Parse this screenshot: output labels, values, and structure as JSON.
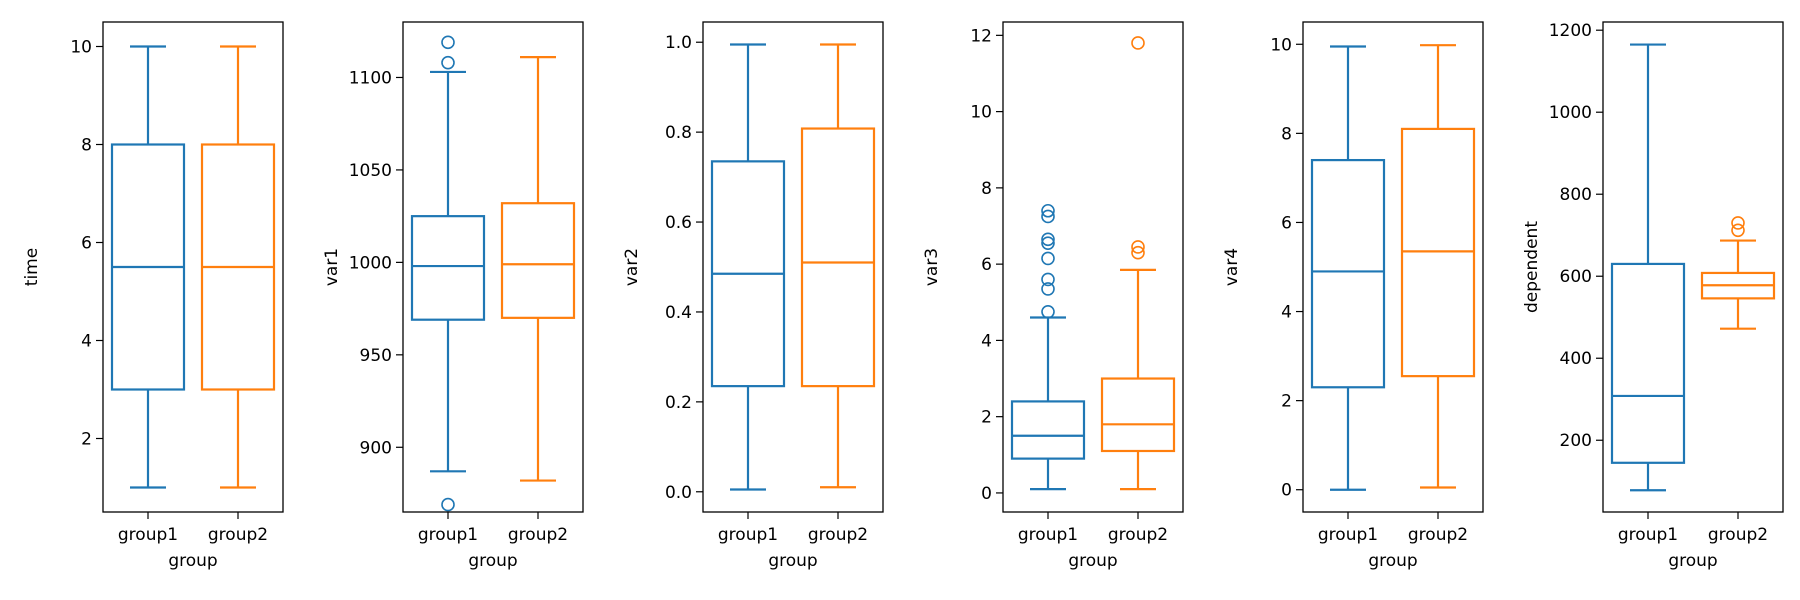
{
  "chart_data": [
    {
      "type": "box",
      "xlabel": "group",
      "ylabel": "time",
      "categories": [
        "group1",
        "group2"
      ],
      "ylim": [
        0.5,
        10.5
      ],
      "yticks": [
        2,
        4,
        6,
        8,
        10
      ],
      "boxes": [
        {
          "category": "group1",
          "color": "#1f77b4",
          "whislo": 1,
          "q1": 3,
          "median": 5.5,
          "q3": 8,
          "whishi": 10,
          "outliers": []
        },
        {
          "category": "group2",
          "color": "#ff7f0e",
          "whislo": 1,
          "q1": 3,
          "median": 5.5,
          "q3": 8,
          "whishi": 10,
          "outliers": []
        }
      ]
    },
    {
      "type": "box",
      "xlabel": "group",
      "ylabel": "var1",
      "categories": [
        "group1",
        "group2"
      ],
      "ylim": [
        865,
        1130
      ],
      "yticks": [
        900,
        950,
        1000,
        1050,
        1100
      ],
      "boxes": [
        {
          "category": "group1",
          "color": "#1f77b4",
          "whislo": 887,
          "q1": 969,
          "median": 998,
          "q3": 1025,
          "whishi": 1103,
          "outliers": [
            869,
            1108,
            1119
          ]
        },
        {
          "category": "group2",
          "color": "#ff7f0e",
          "whislo": 882,
          "q1": 970,
          "median": 999,
          "q3": 1032,
          "whishi": 1111,
          "outliers": []
        }
      ]
    },
    {
      "type": "box",
      "xlabel": "group",
      "ylabel": "var2",
      "categories": [
        "group1",
        "group2"
      ],
      "ylim": [
        -0.045,
        1.045
      ],
      "yticks": [
        0.0,
        0.2,
        0.4,
        0.6,
        0.8,
        1.0
      ],
      "yticklabels": [
        "0.0",
        "0.2",
        "0.4",
        "0.6",
        "0.8",
        "1.0"
      ],
      "boxes": [
        {
          "category": "group1",
          "color": "#1f77b4",
          "whislo": 0.005,
          "q1": 0.235,
          "median": 0.485,
          "q3": 0.735,
          "whishi": 0.995,
          "outliers": []
        },
        {
          "category": "group2",
          "color": "#ff7f0e",
          "whislo": 0.01,
          "q1": 0.235,
          "median": 0.51,
          "q3": 0.808,
          "whishi": 0.995,
          "outliers": []
        }
      ]
    },
    {
      "type": "box",
      "xlabel": "group",
      "ylabel": "var3",
      "categories": [
        "group1",
        "group2"
      ],
      "ylim": [
        -0.5,
        12.35
      ],
      "yticks": [
        0,
        2,
        4,
        6,
        8,
        10,
        12
      ],
      "boxes": [
        {
          "category": "group1",
          "color": "#1f77b4",
          "whislo": 0.1,
          "q1": 0.9,
          "median": 1.5,
          "q3": 2.4,
          "whishi": 4.6,
          "outliers": [
            4.75,
            5.35,
            5.6,
            6.15,
            6.55,
            6.65,
            7.25,
            7.4
          ]
        },
        {
          "category": "group2",
          "color": "#ff7f0e",
          "whislo": 0.1,
          "q1": 1.1,
          "median": 1.8,
          "q3": 3.0,
          "whishi": 5.85,
          "outliers": [
            6.3,
            6.45,
            11.8
          ]
        }
      ]
    },
    {
      "type": "box",
      "xlabel": "group",
      "ylabel": "var4",
      "categories": [
        "group1",
        "group2"
      ],
      "ylim": [
        -0.5,
        10.5
      ],
      "yticks": [
        0,
        2,
        4,
        6,
        8,
        10
      ],
      "boxes": [
        {
          "category": "group1",
          "color": "#1f77b4",
          "whislo": 0.0,
          "q1": 2.3,
          "median": 4.9,
          "q3": 7.4,
          "whishi": 9.95,
          "outliers": []
        },
        {
          "category": "group2",
          "color": "#ff7f0e",
          "whislo": 0.05,
          "q1": 2.55,
          "median": 5.35,
          "q3": 8.1,
          "whishi": 9.98,
          "outliers": []
        }
      ]
    },
    {
      "type": "box",
      "xlabel": "group",
      "ylabel": "dependent",
      "categories": [
        "group1",
        "group2"
      ],
      "ylim": [
        25,
        1220
      ],
      "yticks": [
        200,
        400,
        600,
        800,
        1000,
        1200
      ],
      "boxes": [
        {
          "category": "group1",
          "color": "#1f77b4",
          "whislo": 78,
          "q1": 145,
          "median": 308,
          "q3": 630,
          "whishi": 1165,
          "outliers": []
        },
        {
          "category": "group2",
          "color": "#ff7f0e",
          "whislo": 472,
          "q1": 546,
          "median": 578,
          "q3": 608,
          "whishi": 687,
          "outliers": [
            712,
            730
          ]
        }
      ]
    }
  ]
}
